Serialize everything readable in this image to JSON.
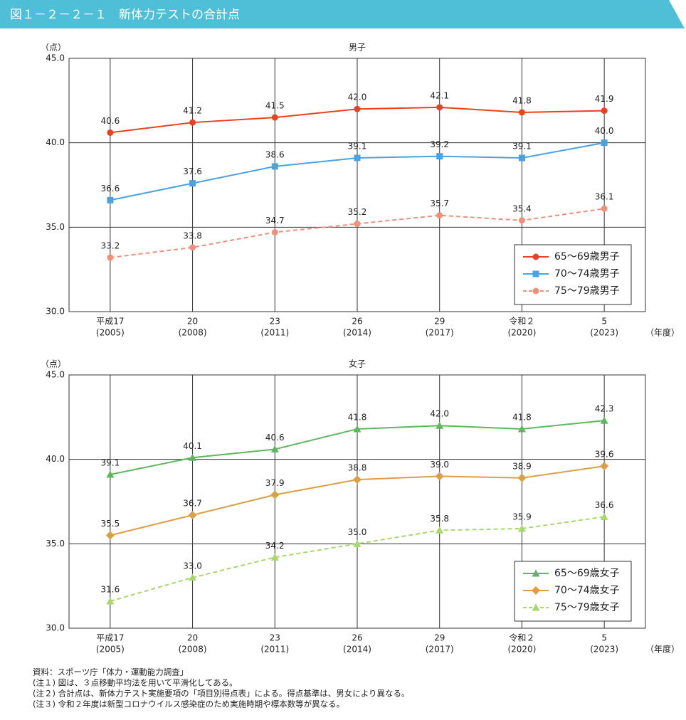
{
  "header": {
    "title": "図１－２－２－１　新体力テストの合計点"
  },
  "chart_data": [
    {
      "type": "line",
      "title": "男子",
      "y_unit": "（点）",
      "x_unit": "（年度）",
      "categories": [
        "平成17",
        "20",
        "23",
        "26",
        "29",
        "令和２",
        "5"
      ],
      "category_years": [
        "(2005)",
        "(2008)",
        "(2011)",
        "(2014)",
        "(2017)",
        "(2020)",
        "(2023)"
      ],
      "ylim": [
        30,
        45
      ],
      "yticks": [
        {
          "value": 30,
          "label": "30.0"
        },
        {
          "value": 35,
          "label": "35.0"
        },
        {
          "value": 40,
          "label": "40.0"
        },
        {
          "value": 45,
          "label": "45.0"
        }
      ],
      "grid": true,
      "legend": "lower right",
      "series": [
        {
          "name": "65〜69歳男子",
          "color": "#e8431e",
          "marker": "circle",
          "dashed": false,
          "values": [
            40.6,
            41.2,
            41.5,
            42.0,
            42.1,
            41.8,
            41.9
          ],
          "value_labels": [
            "40.6",
            "41.2",
            "41.5",
            "42.0",
            "42.1",
            "41.8",
            "41.9"
          ]
        },
        {
          "name": "70〜74歳男子",
          "color": "#4aa3df",
          "marker": "square",
          "dashed": false,
          "values": [
            36.6,
            37.6,
            38.6,
            39.1,
            39.2,
            39.1,
            40.0
          ],
          "value_labels": [
            "36.6",
            "37.6",
            "38.6",
            "39.1",
            "39.2",
            "39.1",
            "40.0"
          ]
        },
        {
          "name": "75〜79歳男子",
          "color": "#f0907a",
          "marker": "circle",
          "dashed": true,
          "values": [
            33.2,
            33.8,
            34.7,
            35.2,
            35.7,
            35.4,
            36.1
          ],
          "value_labels": [
            "33.2",
            "33.8",
            "34.7",
            "35.2",
            "35.7",
            "35.4",
            "36.1"
          ]
        }
      ]
    },
    {
      "type": "line",
      "title": "女子",
      "y_unit": "（点）",
      "x_unit": "（年度）",
      "categories": [
        "平成17",
        "20",
        "23",
        "26",
        "29",
        "令和２",
        "5"
      ],
      "category_years": [
        "(2005)",
        "(2008)",
        "(2011)",
        "(2014)",
        "(2017)",
        "(2020)",
        "(2023)"
      ],
      "ylim": [
        30,
        45
      ],
      "yticks": [
        {
          "value": 30,
          "label": "30.0"
        },
        {
          "value": 35,
          "label": "35.0"
        },
        {
          "value": 40,
          "label": "40.0"
        },
        {
          "value": 45,
          "label": "45.0"
        }
      ],
      "grid": true,
      "legend": "lower right",
      "series": [
        {
          "name": "65〜69歳女子",
          "color": "#5cb85c",
          "marker": "triangle",
          "dashed": false,
          "values": [
            39.1,
            40.1,
            40.6,
            41.8,
            42.0,
            41.8,
            42.3
          ],
          "value_labels": [
            "39.1",
            "40.1",
            "40.6",
            "41.8",
            "42.0",
            "41.8",
            "42.3"
          ]
        },
        {
          "name": "70〜74歳女子",
          "color": "#d9a048",
          "marker": "diamond",
          "dashed": false,
          "values": [
            35.5,
            36.7,
            37.9,
            38.8,
            39.0,
            38.9,
            39.6
          ],
          "value_labels": [
            "35.5",
            "36.7",
            "37.9",
            "38.8",
            "39.0",
            "38.9",
            "39.6"
          ]
        },
        {
          "name": "75〜79歳女子",
          "color": "#a6d86a",
          "marker": "triangle",
          "dashed": true,
          "values": [
            31.6,
            33.0,
            34.2,
            35.0,
            35.8,
            35.9,
            36.6
          ],
          "value_labels": [
            "31.6",
            "33.0",
            "34.2",
            "35.0",
            "35.8",
            "35.9",
            "36.6"
          ]
        }
      ]
    }
  ],
  "notes": [
    "資料：スポーツ庁「体力・運動能力調査」",
    "(注１) 図は、３点移動平均法を用いて平滑化してある。",
    "(注２) 合計点は、新体力テスト実施要項の「項目別得点表」による。得点基準は、男女により異なる。",
    "(注３) 令和２年度は新型コロナウイルス感染症のため実施時期や標本数等が異なる。"
  ]
}
